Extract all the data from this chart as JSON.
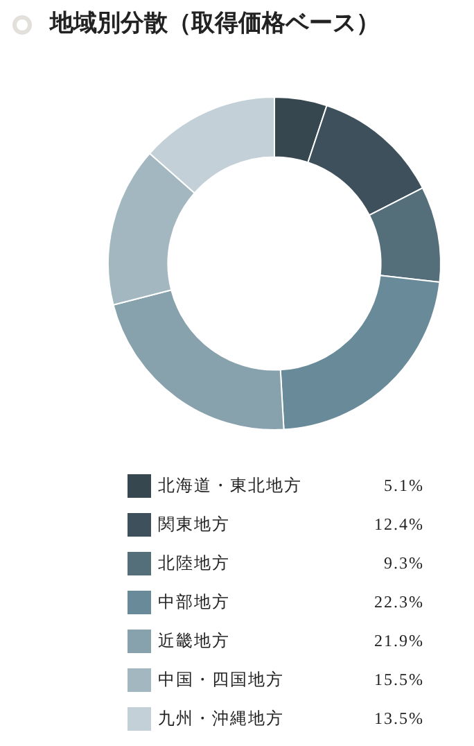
{
  "chart_data": {
    "type": "donut",
    "title": "地域別分散（取得価格ベース）",
    "categories": [
      "北海道・東北地方",
      "関東地方",
      "北陸地方",
      "中部地方",
      "近畿地方",
      "中国・四国地方",
      "九州・沖縄地方"
    ],
    "values": [
      5.1,
      12.4,
      9.3,
      22.3,
      21.9,
      15.5,
      13.5
    ],
    "colors": [
      "#37474f",
      "#3e505b",
      "#546e7a",
      "#688a99",
      "#87a1ad",
      "#a3b7c1",
      "#c3d0d7"
    ],
    "value_labels": [
      "5.1%",
      "12.4%",
      "9.3%",
      "22.3%",
      "21.9%",
      "15.5%",
      "13.5%"
    ],
    "legend": "bottom"
  }
}
